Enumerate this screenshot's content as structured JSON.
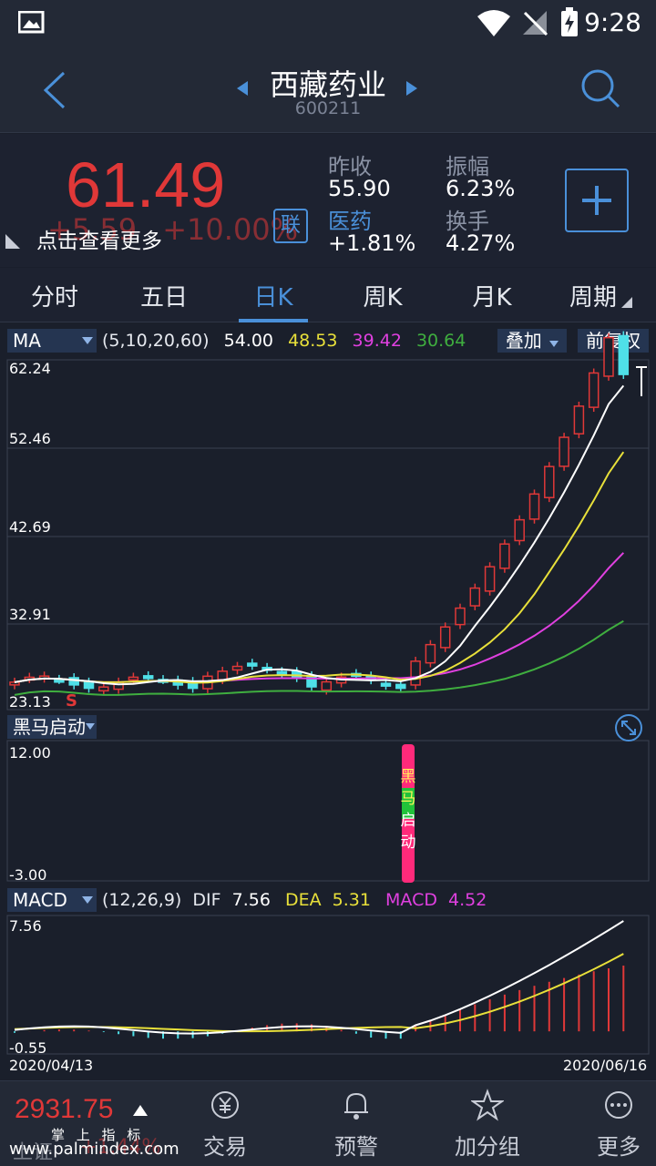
{
  "status_bar": {
    "time": "9:28"
  },
  "header": {
    "stock_name": "西藏药业",
    "stock_code": "600211"
  },
  "quote": {
    "price": "61.49",
    "change": "+5.59",
    "change_pct": "+10.00%",
    "hint": "点击查看更多",
    "link_label": "联",
    "stats": [
      {
        "label": "昨收",
        "value": "55.90"
      },
      {
        "label": "振幅",
        "value": "6.23%"
      },
      {
        "label": "医药",
        "value": "+1.81%"
      },
      {
        "label": "换手",
        "value": "4.27%"
      }
    ]
  },
  "tabs": [
    "分时",
    "五日",
    "日K",
    "周K",
    "月K",
    "周期"
  ],
  "active_tab": "日K",
  "ma_panel": {
    "selector": "MA",
    "params": "(5,10,20,60)",
    "values": [
      "54.00",
      "48.53",
      "39.42",
      "30.64"
    ],
    "overlay_btn": "叠加",
    "adjust_btn": "前复权",
    "y_labels": [
      "62.24",
      "52.46",
      "42.69",
      "32.91",
      "23.13"
    ],
    "signal_label": "S"
  },
  "heima_panel": {
    "selector": "黑马启动",
    "y_top": "12.00",
    "y_bottom": "-3.00",
    "marker_chars": [
      "黑",
      "马",
      "启",
      "动"
    ]
  },
  "macd_panel": {
    "selector": "MACD",
    "params": "(12,26,9)",
    "dif_label": "DIF",
    "dif": "7.56",
    "dea_label": "DEA",
    "dea": "5.31",
    "macd_label": "MACD",
    "macd": "4.52",
    "y_top": "7.56",
    "y_bottom": "-0.55",
    "date_start": "2020/04/13",
    "date_end": "2020/06/16"
  },
  "bottom_nav": {
    "index_value": "2931.75",
    "index_name": "上证",
    "index_change": "+1.44%",
    "watermark_top": "掌 上 指 标",
    "watermark_url": "www.palmindex.com",
    "items": [
      "交易",
      "预警",
      "加分组",
      "更多"
    ]
  },
  "colors": {
    "up": "#e03838",
    "down": "#4fe0e8",
    "accent": "#4a90d9",
    "ma5": "#ffffff",
    "ma10": "#e8e03a",
    "ma20": "#e040e0",
    "ma60": "#3fae3f"
  }
}
